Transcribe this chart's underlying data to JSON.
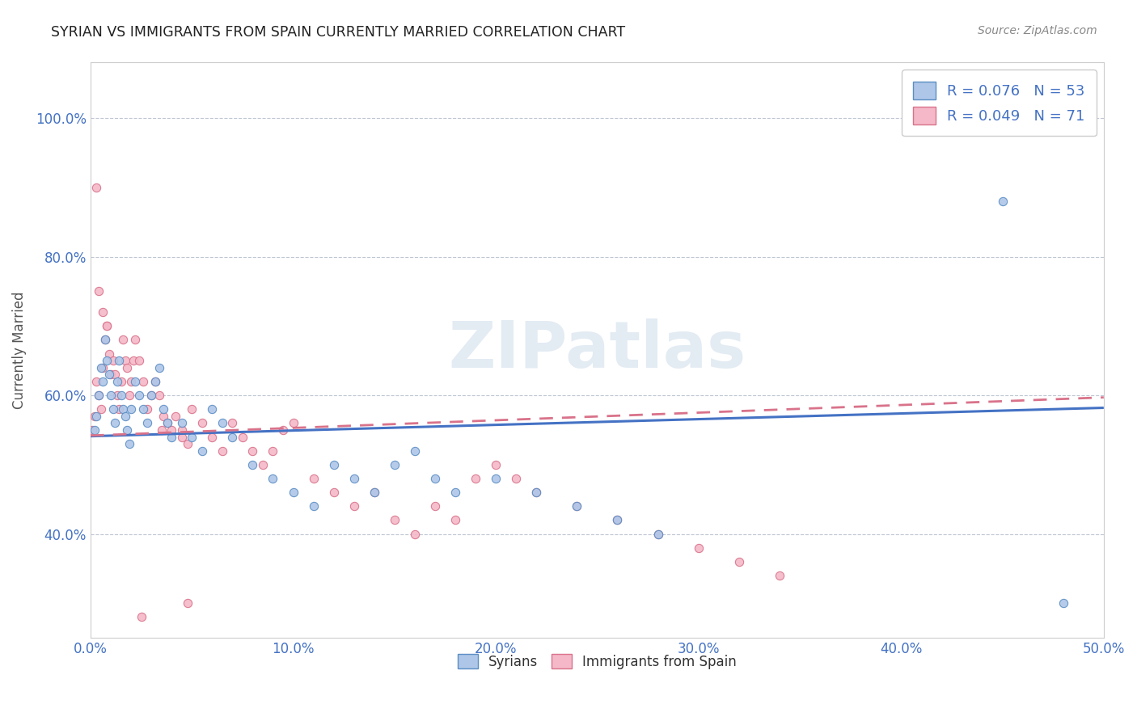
{
  "title": "SYRIAN VS IMMIGRANTS FROM SPAIN CURRENTLY MARRIED CORRELATION CHART",
  "source": "Source: ZipAtlas.com",
  "ylabel": "Currently Married",
  "xmin": 0.0,
  "xmax": 0.5,
  "ymin": 0.25,
  "ymax": 1.08,
  "xtick_labels": [
    "0.0%",
    "10.0%",
    "20.0%",
    "30.0%",
    "40.0%",
    "50.0%"
  ],
  "xtick_vals": [
    0.0,
    0.1,
    0.2,
    0.3,
    0.4,
    0.5
  ],
  "ytick_labels": [
    "40.0%",
    "60.0%",
    "80.0%",
    "100.0%"
  ],
  "ytick_vals": [
    0.4,
    0.6,
    0.8,
    1.0
  ],
  "blue_R": 0.076,
  "blue_N": 53,
  "pink_R": 0.049,
  "pink_N": 71,
  "blue_color": "#aec6e8",
  "pink_color": "#f4b8c8",
  "blue_edge_color": "#5b8ec4",
  "pink_edge_color": "#d9728a",
  "blue_line_color": "#4472c4",
  "pink_line_color": "#d9728a",
  "watermark": "ZIPatlas",
  "legend_label_blue": "Syrians",
  "legend_label_pink": "Immigrants from Spain",
  "blue_scatter_x": [
    0.002,
    0.003,
    0.004,
    0.005,
    0.006,
    0.007,
    0.008,
    0.009,
    0.01,
    0.011,
    0.012,
    0.013,
    0.014,
    0.015,
    0.016,
    0.017,
    0.018,
    0.019,
    0.02,
    0.022,
    0.024,
    0.026,
    0.028,
    0.03,
    0.032,
    0.034,
    0.036,
    0.038,
    0.04,
    0.045,
    0.05,
    0.055,
    0.06,
    0.065,
    0.07,
    0.08,
    0.09,
    0.1,
    0.11,
    0.12,
    0.13,
    0.14,
    0.15,
    0.16,
    0.17,
    0.18,
    0.2,
    0.22,
    0.24,
    0.26,
    0.28,
    0.45,
    0.48
  ],
  "blue_scatter_y": [
    0.55,
    0.57,
    0.6,
    0.64,
    0.62,
    0.68,
    0.65,
    0.63,
    0.6,
    0.58,
    0.56,
    0.62,
    0.65,
    0.6,
    0.58,
    0.57,
    0.55,
    0.53,
    0.58,
    0.62,
    0.6,
    0.58,
    0.56,
    0.6,
    0.62,
    0.64,
    0.58,
    0.56,
    0.54,
    0.56,
    0.54,
    0.52,
    0.58,
    0.56,
    0.54,
    0.5,
    0.48,
    0.46,
    0.44,
    0.5,
    0.48,
    0.46,
    0.5,
    0.52,
    0.48,
    0.46,
    0.48,
    0.46,
    0.44,
    0.42,
    0.4,
    0.88,
    0.3
  ],
  "pink_scatter_x": [
    0.001,
    0.002,
    0.003,
    0.004,
    0.005,
    0.006,
    0.007,
    0.008,
    0.009,
    0.01,
    0.011,
    0.012,
    0.013,
    0.014,
    0.015,
    0.016,
    0.017,
    0.018,
    0.019,
    0.02,
    0.021,
    0.022,
    0.024,
    0.026,
    0.028,
    0.03,
    0.032,
    0.034,
    0.036,
    0.038,
    0.04,
    0.042,
    0.045,
    0.048,
    0.05,
    0.055,
    0.06,
    0.065,
    0.07,
    0.075,
    0.08,
    0.085,
    0.09,
    0.095,
    0.1,
    0.11,
    0.12,
    0.13,
    0.14,
    0.15,
    0.16,
    0.17,
    0.18,
    0.19,
    0.2,
    0.21,
    0.22,
    0.24,
    0.26,
    0.28,
    0.3,
    0.32,
    0.34,
    0.048,
    0.025,
    0.003,
    0.004,
    0.006,
    0.008,
    0.035,
    0.045
  ],
  "pink_scatter_y": [
    0.55,
    0.57,
    0.62,
    0.6,
    0.58,
    0.64,
    0.68,
    0.7,
    0.66,
    0.63,
    0.65,
    0.63,
    0.6,
    0.58,
    0.62,
    0.68,
    0.65,
    0.64,
    0.6,
    0.62,
    0.65,
    0.68,
    0.65,
    0.62,
    0.58,
    0.6,
    0.62,
    0.6,
    0.57,
    0.56,
    0.55,
    0.57,
    0.55,
    0.53,
    0.58,
    0.56,
    0.54,
    0.52,
    0.56,
    0.54,
    0.52,
    0.5,
    0.52,
    0.55,
    0.56,
    0.48,
    0.46,
    0.44,
    0.46,
    0.42,
    0.4,
    0.44,
    0.42,
    0.48,
    0.5,
    0.48,
    0.46,
    0.44,
    0.42,
    0.4,
    0.38,
    0.36,
    0.34,
    0.3,
    0.28,
    0.9,
    0.75,
    0.72,
    0.7,
    0.55,
    0.54
  ]
}
